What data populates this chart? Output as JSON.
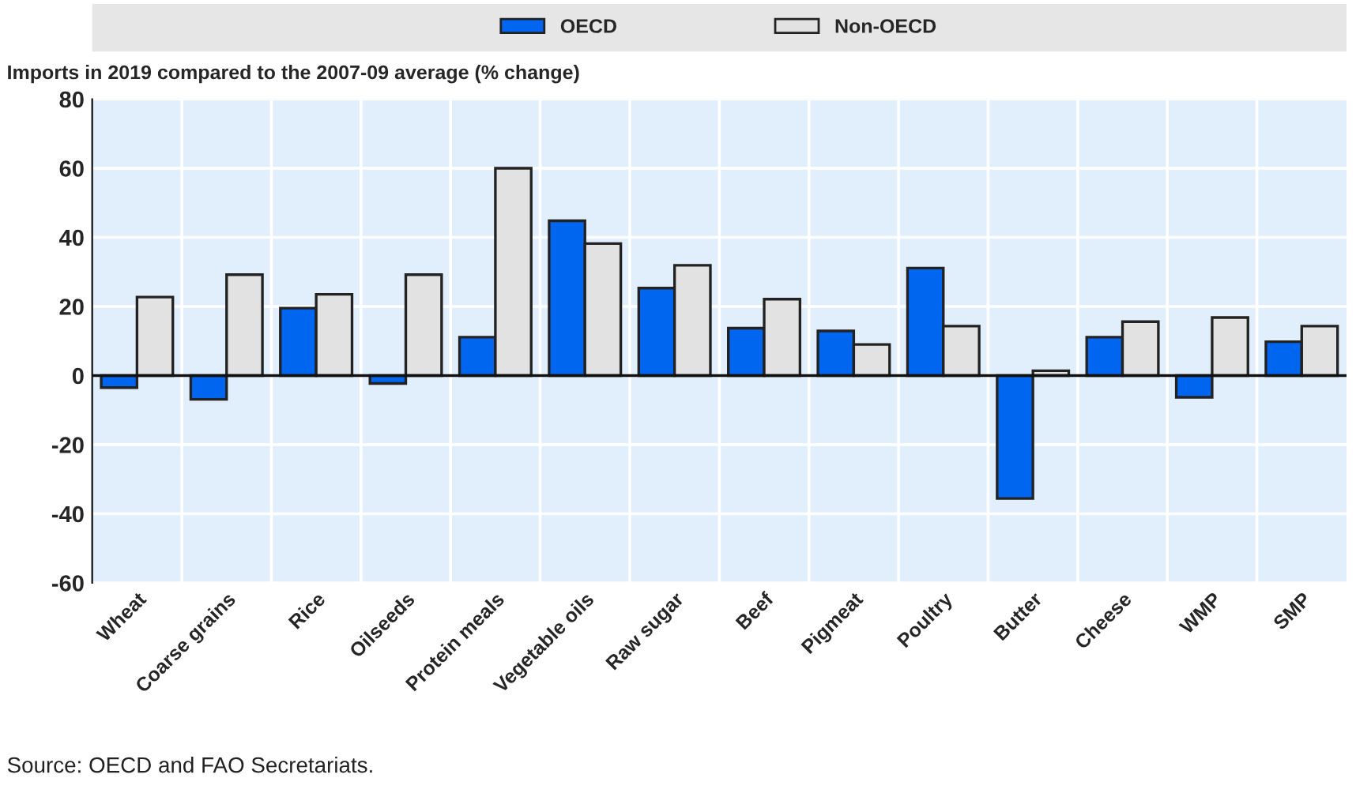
{
  "chart_data": {
    "type": "bar",
    "ylabel": "Imports in 2019 compared to the 2007-09 average (% change)",
    "categories": [
      "Wheat",
      "Coarse grains",
      "Rice",
      "Oilseeds",
      "Protein meals",
      "Vegetable oils",
      "Raw sugar",
      "Beef",
      "Pigmeat",
      "Poultry",
      "Butter",
      "Cheese",
      "WMP",
      "SMP"
    ],
    "series": [
      {
        "name": "OECD",
        "color": "#0066f0",
        "values": [
          -3.5,
          -6.9,
          19.5,
          -2.3,
          11.1,
          44.8,
          25.3,
          13.7,
          12.9,
          31.1,
          -35.6,
          11.1,
          -6.3,
          9.8
        ]
      },
      {
        "name": "Non-OECD",
        "color": "#e2e2e2",
        "values": [
          22.7,
          29.2,
          23.5,
          29.2,
          60,
          38.2,
          31.9,
          22.1,
          9.0,
          14.3,
          1.4,
          15.6,
          16.8,
          14.3
        ]
      }
    ],
    "ylim": [
      -60,
      80
    ],
    "yticks": [
      -60,
      -40,
      -20,
      0,
      20,
      40,
      60,
      80
    ],
    "grid": true,
    "legend": "top",
    "annotations": [
      "Source: OECD and FAO Secretariats."
    ]
  }
}
